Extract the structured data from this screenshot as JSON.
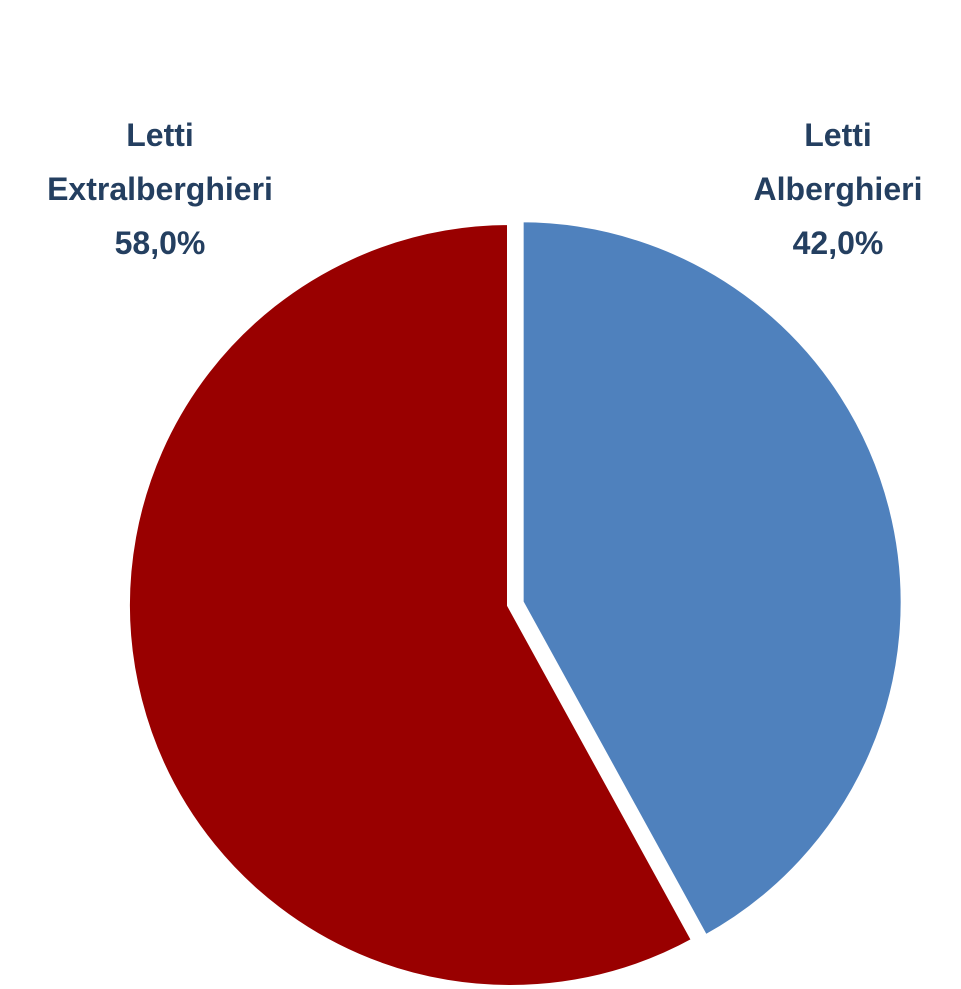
{
  "chart_data": {
    "type": "pie",
    "categories": [
      "Letti Alberghieri",
      "Letti Extralberghieri"
    ],
    "values": [
      42.0,
      58.0
    ],
    "value_labels": [
      "42,0%",
      "58,0%"
    ],
    "colors": [
      "#4f81bd",
      "#990000"
    ]
  }
}
